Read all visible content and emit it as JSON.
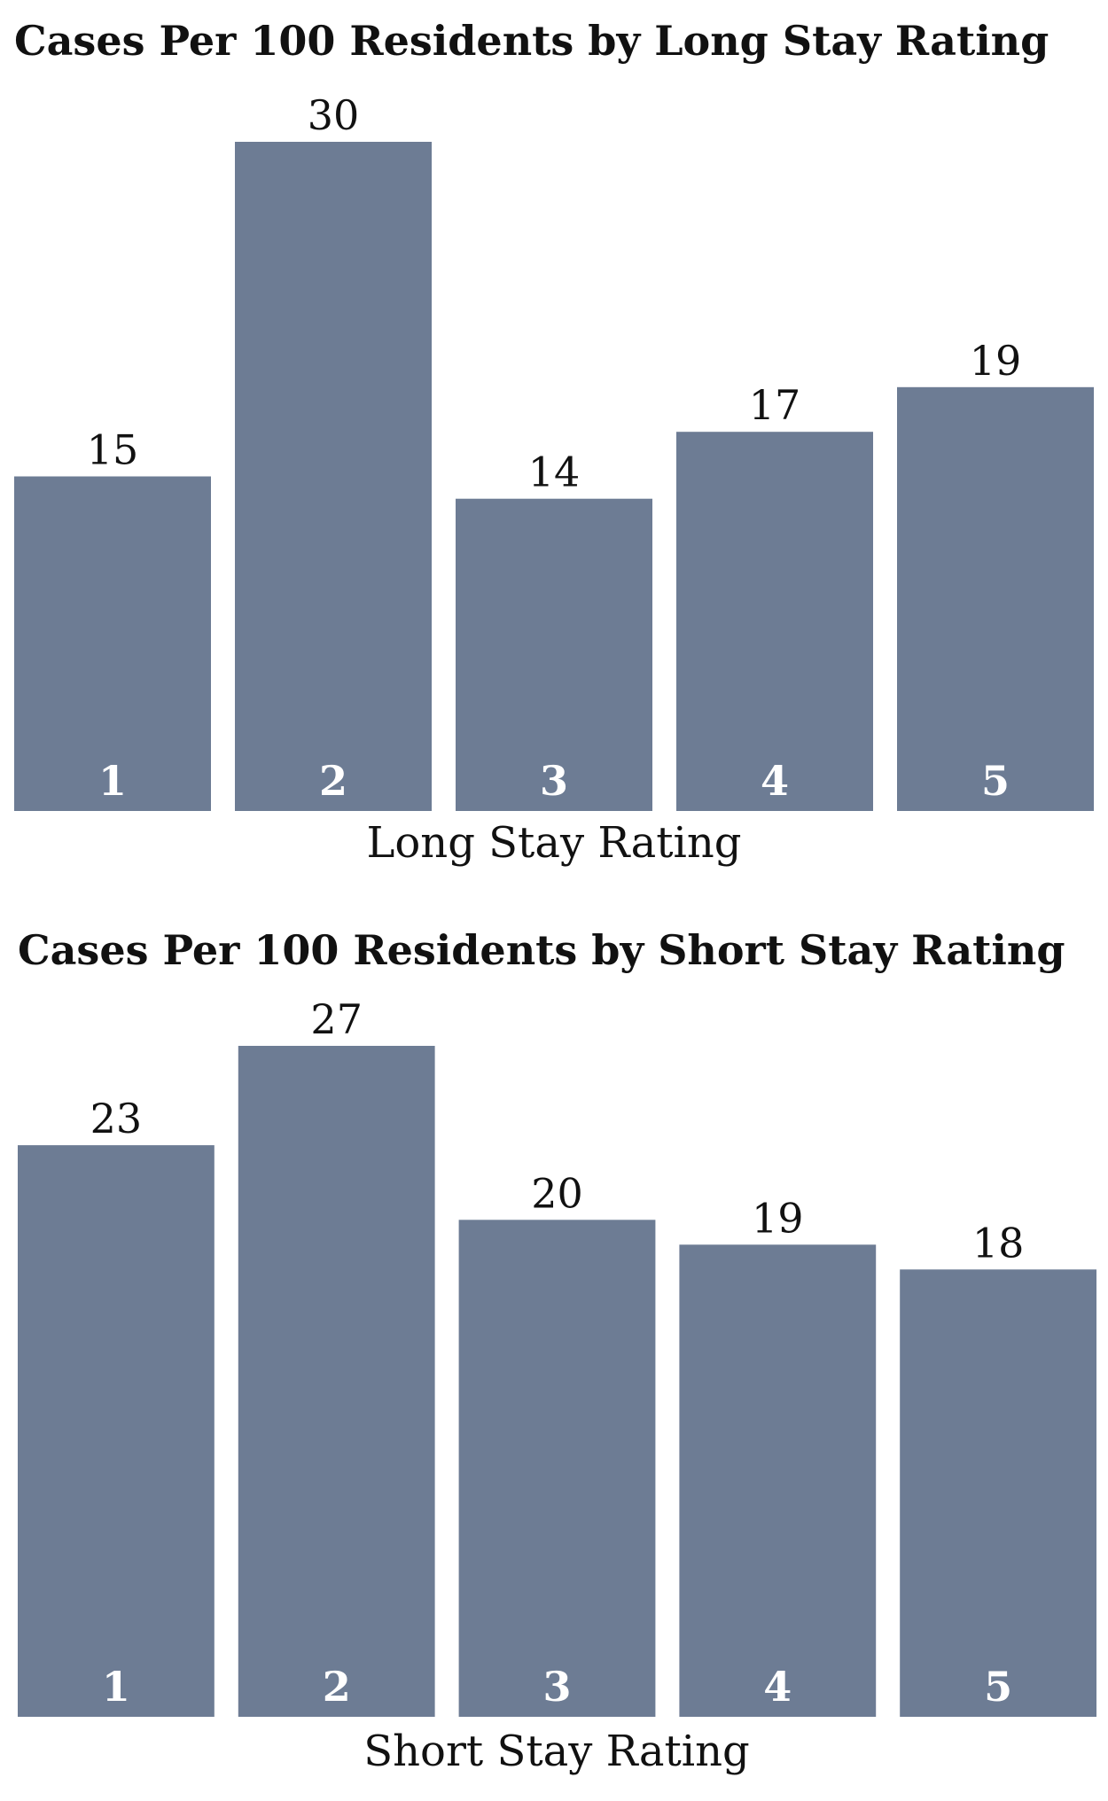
{
  "chart_data": [
    {
      "type": "bar",
      "title": "Cases Per 100 Residents by Long Stay Rating",
      "xlabel": "Long Stay Rating",
      "ylabel": "",
      "categories": [
        "1",
        "2",
        "3",
        "4",
        "5"
      ],
      "values": [
        15,
        30,
        14,
        17,
        19
      ],
      "ylim": [
        0,
        30
      ],
      "grid": false,
      "bar_color": "#6d7c94"
    },
    {
      "type": "bar",
      "title": "Cases Per 100 Residents by Short Stay Rating",
      "xlabel": "Short Stay Rating",
      "ylabel": "",
      "categories": [
        "1",
        "2",
        "3",
        "4",
        "5"
      ],
      "values": [
        23,
        27,
        20,
        19,
        18
      ],
      "ylim": [
        0,
        27
      ],
      "grid": false,
      "bar_color": "#6d7c94"
    }
  ]
}
